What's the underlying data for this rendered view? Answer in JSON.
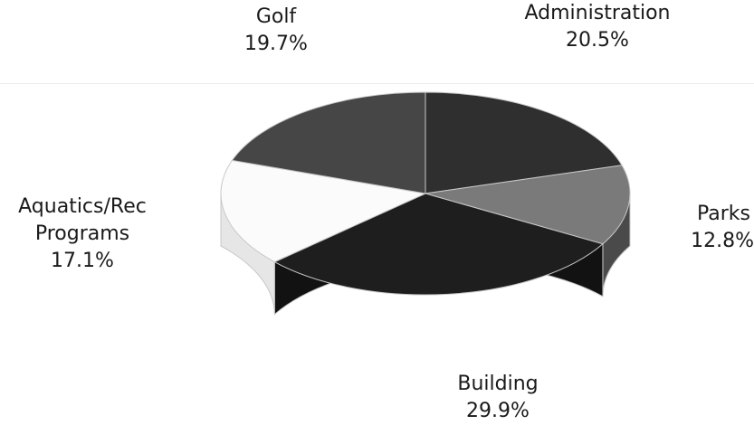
{
  "chart_data": {
    "type": "pie",
    "title": "",
    "slices": [
      {
        "label": "Administration",
        "value": 20.5,
        "value_label": "20.5%",
        "color": "#2f2f2f",
        "side_color": "#1c1c1c"
      },
      {
        "label": "Parks",
        "value": 12.8,
        "value_label": "12.8%",
        "color": "#7a7a7a",
        "side_color": "#4a4a4a"
      },
      {
        "label": "Building",
        "value": 29.9,
        "value_label": "29.9%",
        "color": "#1e1e1e",
        "side_color": "#121212"
      },
      {
        "label": "Aquatics/Rec Programs",
        "label_lines": [
          "Aquatics/Rec",
          "Programs"
        ],
        "value": 17.1,
        "value_label": "17.1%",
        "color": "#fbfbfb",
        "side_color": "#e6e6e6"
      },
      {
        "label": "Golf",
        "value": 19.7,
        "value_label": "19.7%",
        "color": "#464646",
        "side_color": "#2c2c2c"
      }
    ],
    "start_angle_deg": 90,
    "direction": "clockwise",
    "three_d": true,
    "legend": "none"
  }
}
